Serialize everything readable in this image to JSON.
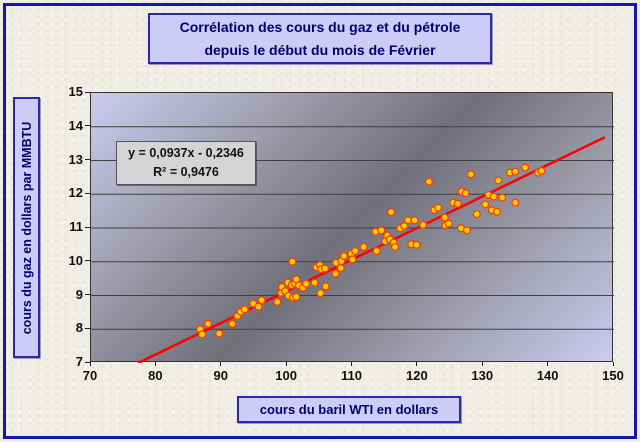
{
  "frame": {
    "title_line1": "Corrélation des cours du gaz et du pétrole",
    "title_line2": "depuis le début du mois de Février"
  },
  "colors": {
    "frame_border": "#1616ac",
    "label_box_fill": "#ccccf6",
    "label_text": "#00006b",
    "plot_gradient_light": "#cbcbf0",
    "plot_gradient_dark": "#70707a",
    "gridline": "#3f3f3f",
    "trend_line": "#ff0000",
    "marker_fill": "#ffcc00",
    "marker_stroke": "#f04010",
    "equation_box_fill": "#d4d4d6"
  },
  "chart_data": {
    "type": "scatter",
    "title": "Corrélation des cours du gaz et du pétrole depuis le début du mois de Février",
    "xlabel": "cours du baril WTI en dollars",
    "ylabel": "cours du gaz en dollars par MMBTU",
    "xlim": [
      70,
      150
    ],
    "ylim": [
      7,
      15
    ],
    "x_ticks": [
      70,
      80,
      90,
      100,
      110,
      120,
      130,
      140,
      150
    ],
    "y_ticks": [
      7,
      8,
      9,
      10,
      11,
      12,
      13,
      14,
      15
    ],
    "grid": "horizontal",
    "legend": "none",
    "marker": {
      "fill": "#ffcc00",
      "stroke": "#f04010",
      "radius": 3.4
    },
    "trendline": {
      "slope": 0.0937,
      "intercept": -0.2346,
      "x_start": 77.2,
      "x_end": 148.6,
      "color": "#ff0000",
      "equation_label": "y = 0,0937x - 0,2346",
      "r2_label": "R² = 0,9476",
      "r_squared": 0.9476
    },
    "points": [
      [
        86.7,
        8.0
      ],
      [
        87.0,
        7.85
      ],
      [
        87.9,
        8.16
      ],
      [
        89.6,
        7.87
      ],
      [
        91.6,
        8.16
      ],
      [
        92.4,
        8.39
      ],
      [
        92.9,
        8.52
      ],
      [
        93.5,
        8.59
      ],
      [
        94.8,
        8.76
      ],
      [
        95.6,
        8.67
      ],
      [
        96.1,
        8.86
      ],
      [
        98.5,
        8.81
      ],
      [
        99.1,
        9.08
      ],
      [
        99.2,
        9.25
      ],
      [
        99.7,
        9.13
      ],
      [
        100.1,
        9.38
      ],
      [
        100.2,
        8.99
      ],
      [
        100.7,
        9.31
      ],
      [
        100.8,
        10.0
      ],
      [
        100.9,
        8.94
      ],
      [
        101.2,
        9.35
      ],
      [
        101.4,
        8.96
      ],
      [
        101.4,
        9.48
      ],
      [
        101.8,
        9.3
      ],
      [
        102.4,
        9.23
      ],
      [
        102.9,
        9.35
      ],
      [
        104.2,
        9.38
      ],
      [
        104.5,
        9.84
      ],
      [
        105.0,
        9.9
      ],
      [
        105.1,
        9.07
      ],
      [
        105.2,
        9.78
      ],
      [
        105.8,
        9.8
      ],
      [
        105.9,
        9.27
      ],
      [
        107.4,
        9.65
      ],
      [
        107.5,
        9.97
      ],
      [
        108.2,
        9.81
      ],
      [
        108.3,
        10.02
      ],
      [
        108.7,
        10.17
      ],
      [
        109.8,
        10.24
      ],
      [
        110.0,
        10.07
      ],
      [
        110.4,
        10.32
      ],
      [
        111.7,
        10.44
      ],
      [
        113.5,
        10.89
      ],
      [
        113.7,
        10.32
      ],
      [
        114.4,
        10.93
      ],
      [
        115.0,
        10.61
      ],
      [
        115.3,
        10.78
      ],
      [
        115.7,
        10.66
      ],
      [
        115.9,
        11.47
      ],
      [
        116.3,
        10.57
      ],
      [
        116.5,
        10.44
      ],
      [
        117.3,
        10.99
      ],
      [
        117.9,
        11.06
      ],
      [
        118.5,
        11.23
      ],
      [
        119.0,
        10.52
      ],
      [
        119.5,
        11.23
      ],
      [
        119.8,
        10.5
      ],
      [
        120.8,
        11.09
      ],
      [
        121.7,
        12.37
      ],
      [
        122.5,
        11.53
      ],
      [
        123.1,
        11.6
      ],
      [
        124.1,
        11.31
      ],
      [
        124.2,
        11.08
      ],
      [
        124.7,
        11.13
      ],
      [
        125.4,
        11.75
      ],
      [
        126.1,
        11.72
      ],
      [
        126.6,
        10.99
      ],
      [
        126.7,
        12.08
      ],
      [
        127.3,
        12.03
      ],
      [
        127.5,
        10.93
      ],
      [
        128.1,
        12.59
      ],
      [
        129.0,
        11.41
      ],
      [
        130.3,
        11.7
      ],
      [
        130.8,
        11.98
      ],
      [
        131.3,
        11.53
      ],
      [
        131.6,
        11.93
      ],
      [
        132.1,
        11.48
      ],
      [
        132.3,
        12.41
      ],
      [
        132.9,
        11.9
      ],
      [
        134.1,
        12.64
      ],
      [
        134.9,
        11.75
      ],
      [
        134.9,
        12.67
      ],
      [
        136.4,
        12.79
      ],
      [
        138.4,
        12.64
      ],
      [
        138.9,
        12.69
      ]
    ]
  }
}
